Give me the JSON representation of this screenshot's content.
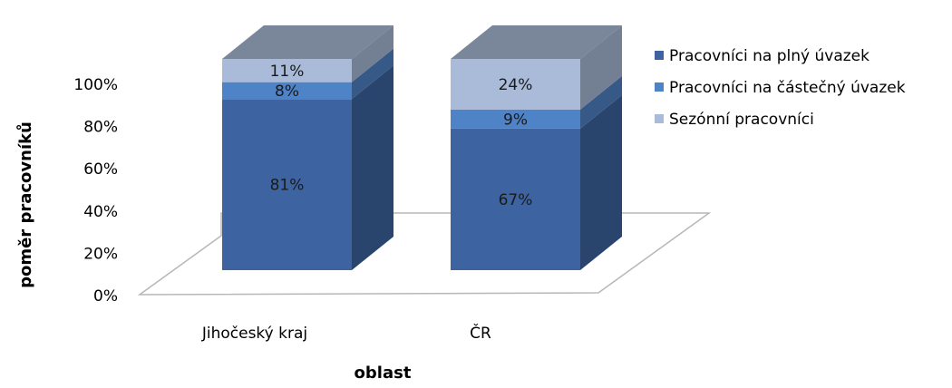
{
  "chart_data": {
    "type": "bar",
    "stacked": true,
    "three_d": true,
    "categories": [
      "Jihočeský kraj",
      "ČR"
    ],
    "series": [
      {
        "name": "Pracovníci na plný úvazek",
        "values": [
          81,
          67
        ],
        "labels": [
          "81%",
          "67%"
        ],
        "color": "#3d64a0"
      },
      {
        "name": "Pracovníci na částečný úvazek",
        "values": [
          8,
          9
        ],
        "labels": [
          "8%",
          "9%"
        ],
        "color": "#4f83c7"
      },
      {
        "name": "Sezónní pracovníci",
        "values": [
          11,
          24
        ],
        "labels": [
          "11%",
          "24%"
        ],
        "color": "#a9bbd8"
      }
    ],
    "xlabel": "oblast",
    "ylabel": "poměr pracovníků",
    "yticks": [
      "0%",
      "20%",
      "40%",
      "60%",
      "80%",
      "100%"
    ],
    "ylim": [
      0,
      100
    ],
    "grid": false,
    "legend_position": "right",
    "top_face_color": "#7a8699"
  }
}
